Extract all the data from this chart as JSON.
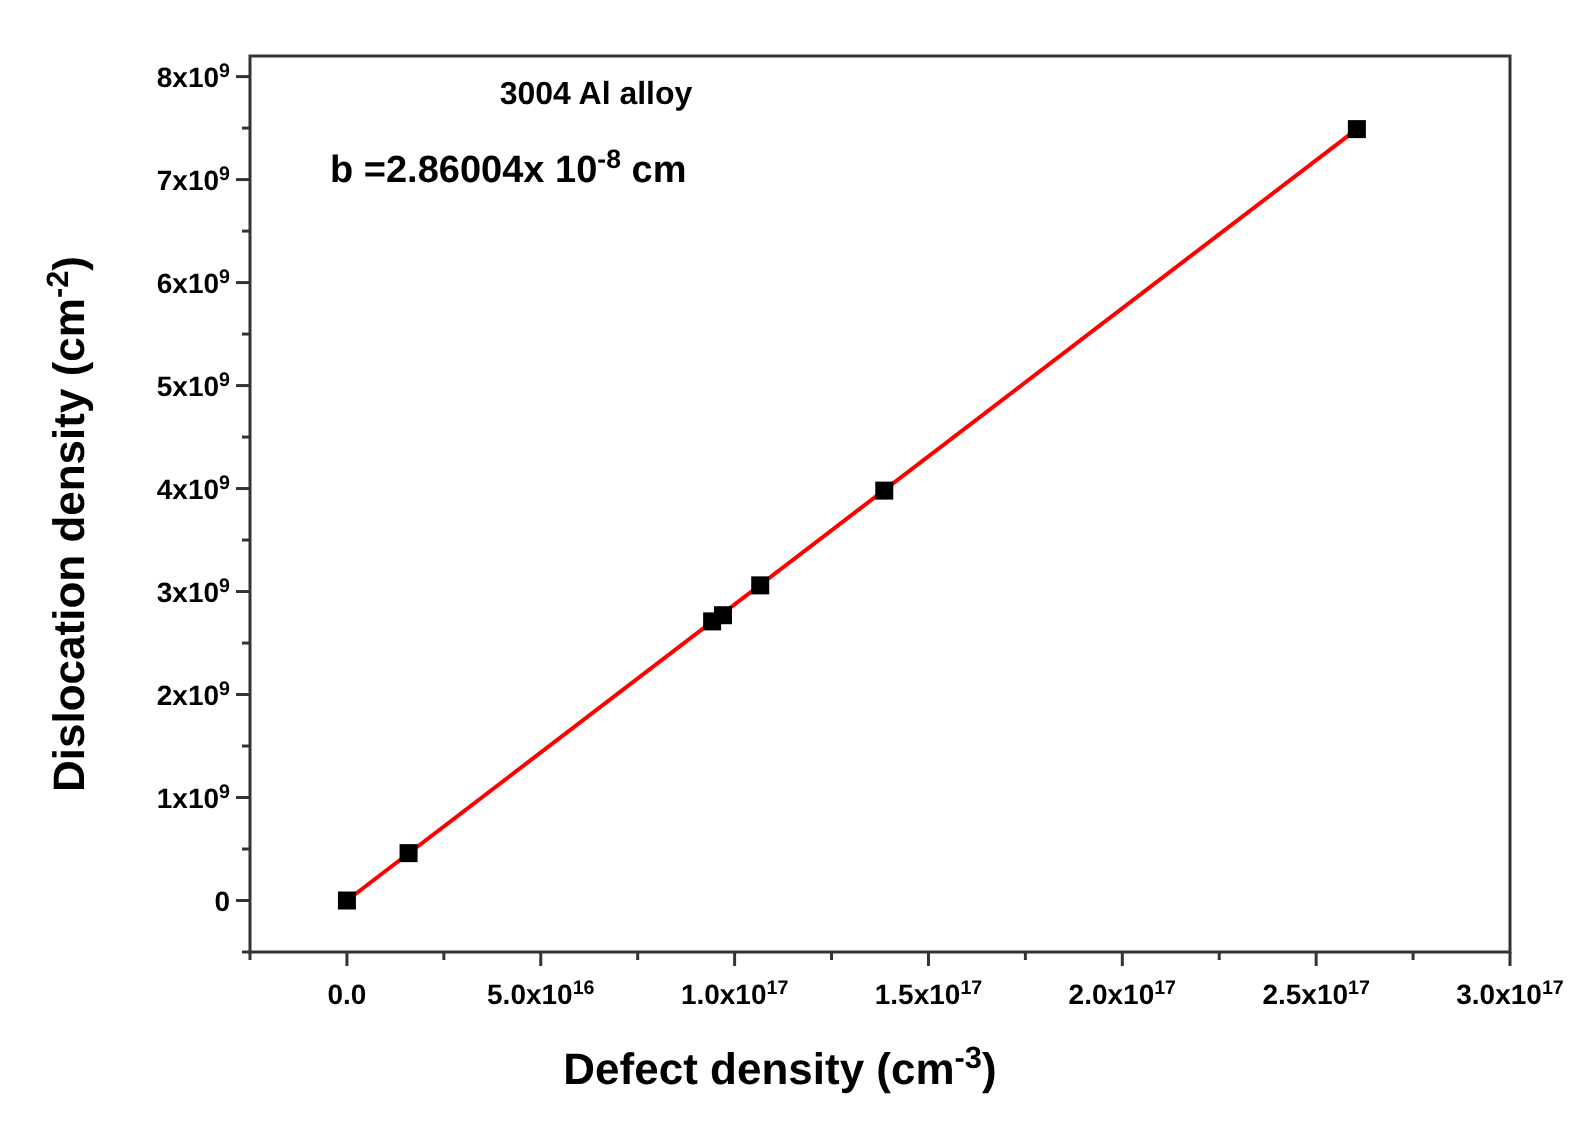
{
  "chart_data": {
    "type": "scatter",
    "xlabel": "Defect density (cm$^{-3}$)",
    "ylabel": "Dislocation density (cm$^{-2}$)",
    "annotations": [
      "3004 Al alloy",
      "b =2.86004x 10$^{-8}$ cm"
    ],
    "xlim": [
      -2.5e+16,
      3e+17
    ],
    "ylim": [
      -500000000.0,
      8200000000.0
    ],
    "xticks": [
      {
        "value": -2.5e+16,
        "label": null
      },
      {
        "value": 0,
        "label": "0.0"
      },
      {
        "value": 2.5e+16,
        "label": null
      },
      {
        "value": 5e+16,
        "label": "5.0x10$^{16}$"
      },
      {
        "value": 7.5e+16,
        "label": null
      },
      {
        "value": 1e+17,
        "label": "1.0x10$^{17}$"
      },
      {
        "value": 1.25e+17,
        "label": null
      },
      {
        "value": 1.5e+17,
        "label": "1.5x10$^{17}$"
      },
      {
        "value": 1.75e+17,
        "label": null
      },
      {
        "value": 2e+17,
        "label": "2.0x10$^{17}$"
      },
      {
        "value": 2.25e+17,
        "label": null
      },
      {
        "value": 2.5e+17,
        "label": "2.5x10$^{17}$"
      },
      {
        "value": 2.75e+17,
        "label": null
      },
      {
        "value": 3e+17,
        "label": "3.0x10$^{17}$"
      }
    ],
    "yticks": [
      {
        "value": -500000000.0,
        "label": null
      },
      {
        "value": 0,
        "label": "0"
      },
      {
        "value": 500000000.0,
        "label": null
      },
      {
        "value": 1000000000.0,
        "label": "1x10$^{9}$"
      },
      {
        "value": 1500000000.0,
        "label": null
      },
      {
        "value": 2000000000.0,
        "label": "2x10$^{9}$"
      },
      {
        "value": 2500000000.0,
        "label": null
      },
      {
        "value": 3000000000.0,
        "label": "3x10$^{9}$"
      },
      {
        "value": 3500000000.0,
        "label": null
      },
      {
        "value": 4000000000.0,
        "label": "4x10$^{9}$"
      },
      {
        "value": 4500000000.0,
        "label": null
      },
      {
        "value": 5000000000.0,
        "label": "5x10$^{9}$"
      },
      {
        "value": 5500000000.0,
        "label": null
      },
      {
        "value": 6000000000.0,
        "label": "6x10$^{9}$"
      },
      {
        "value": 6500000000.0,
        "label": null
      },
      {
        "value": 7000000000.0,
        "label": "7x10$^{9}$"
      },
      {
        "value": 7500000000.0,
        "label": null
      },
      {
        "value": 8000000000.0,
        "label": "8x10$^{9}$"
      }
    ],
    "grid": false,
    "series": [
      {
        "type": "line",
        "color": "#ff0000",
        "marker": "none",
        "line_style": "solid",
        "x": [
          0,
          2.605e+17
        ],
        "values": [
          0,
          7490000000.0
        ]
      },
      {
        "color": "#000000",
        "marker": "square",
        "x": [
          0,
          1.59e+16,
          9.42e+16,
          9.7e+16,
          1.066e+17,
          1.386e+17,
          2.605e+17
        ],
        "values": [
          0,
          460000000.0,
          2710000000.0,
          2770000000.0,
          3060000000.0,
          3980000000.0,
          7490000000.0
        ]
      }
    ]
  }
}
